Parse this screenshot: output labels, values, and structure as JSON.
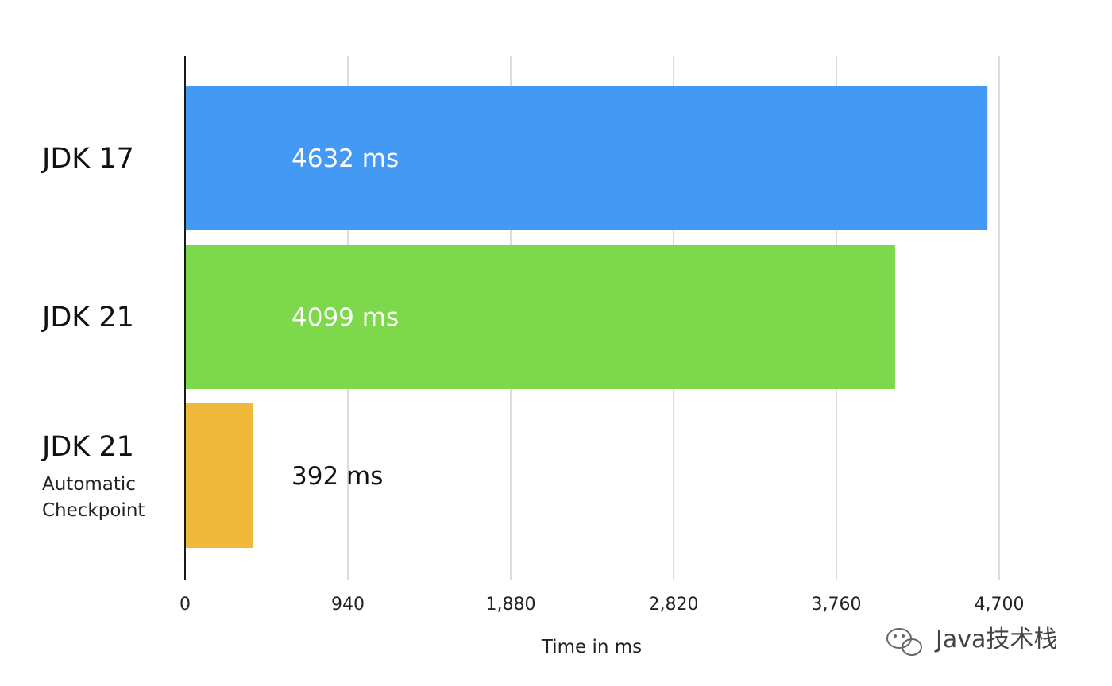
{
  "chart_data": {
    "type": "bar",
    "orientation": "horizontal",
    "categories": [
      {
        "label": "JDK 17",
        "sublabel": []
      },
      {
        "label": "JDK 21",
        "sublabel": []
      },
      {
        "label": "JDK 21",
        "sublabel": [
          "Automatic",
          "Checkpoint"
        ]
      }
    ],
    "values": [
      4632,
      4099,
      392
    ],
    "data_labels": [
      "4632 ms",
      "4099 ms",
      "392 ms"
    ],
    "colors": [
      "#4499f5",
      "#7ed84c",
      "#f0b93b"
    ],
    "data_label_colors": [
      "#ffffff",
      "#ffffff",
      "#111111"
    ],
    "xlabel": "Time in ms",
    "xlim": [
      0,
      4700
    ],
    "xticks": [
      0,
      940,
      1880,
      2820,
      3760,
      4700
    ],
    "xtick_labels": [
      "0",
      "940",
      "1,880",
      "2,820",
      "3,760",
      "4,700"
    ],
    "grid": true
  },
  "watermark": {
    "text": "Java技术栈",
    "icon": "wechat-icon"
  }
}
